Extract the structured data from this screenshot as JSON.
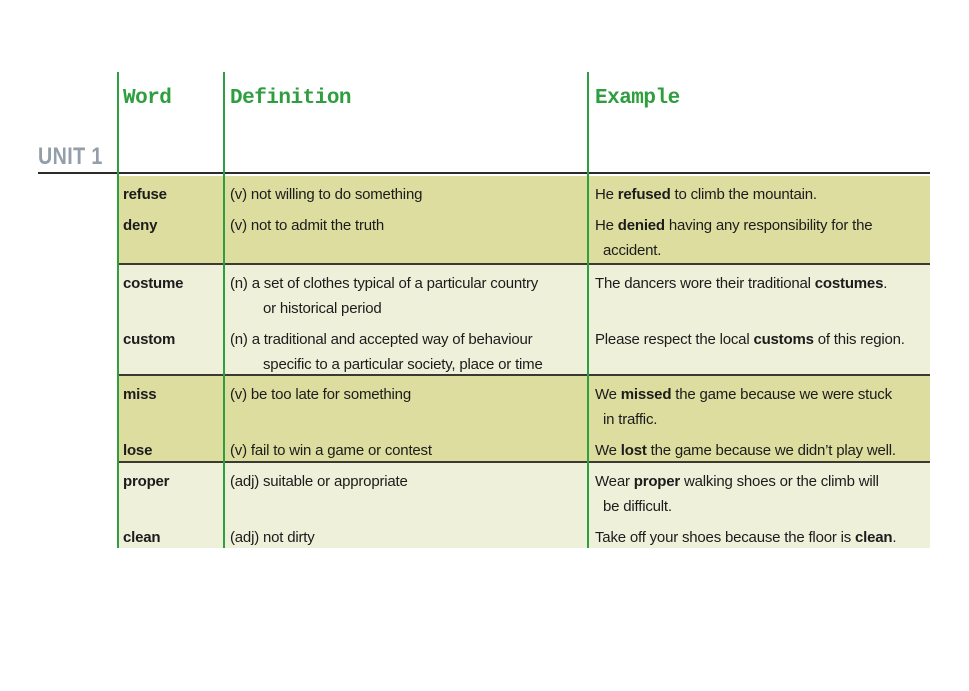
{
  "unit_label": "UNIT 1",
  "colors": {
    "accent_green": "#2f9e3f",
    "row_dark": "#dcdd9f",
    "row_light": "#eff0da",
    "separator": "#3a3a30",
    "rule": "#2b2b28",
    "unit_gray": "#939eaa",
    "text": "#1c1c1c"
  },
  "table": {
    "headers": [
      "Word",
      "Definition",
      "Example"
    ],
    "rows": [
      {
        "shade": "dark",
        "entries": [
          {
            "word": "refuse",
            "definition": [
              {
                "indent": false,
                "text": "(v) not willing to do something"
              }
            ],
            "example": [
              {
                "indent": false,
                "segments": [
                  {
                    "t": "He ",
                    "b": false
                  },
                  {
                    "t": "refused",
                    "b": true
                  },
                  {
                    "t": " to climb the mountain.",
                    "b": false
                  }
                ]
              }
            ]
          },
          {
            "word": "deny",
            "definition": [
              {
                "indent": false,
                "text": "(v) not to admit the truth"
              }
            ],
            "example": [
              {
                "indent": false,
                "segments": [
                  {
                    "t": "He ",
                    "b": false
                  },
                  {
                    "t": "denied",
                    "b": true
                  },
                  {
                    "t": " having any responsibility for the",
                    "b": false
                  }
                ]
              },
              {
                "indent": true,
                "segments": [
                  {
                    "t": "accident.",
                    "b": false
                  }
                ]
              }
            ]
          }
        ]
      },
      {
        "shade": "light",
        "entries": [
          {
            "word": "costume",
            "definition": [
              {
                "indent": false,
                "text": "(n) a set of clothes typical of a particular country"
              },
              {
                "indent": true,
                "text": "or historical period"
              }
            ],
            "example": [
              {
                "indent": false,
                "segments": [
                  {
                    "t": "The dancers wore their traditional ",
                    "b": false
                  },
                  {
                    "t": "costumes",
                    "b": true
                  },
                  {
                    "t": ".",
                    "b": false
                  }
                ]
              }
            ]
          },
          {
            "word": "custom",
            "definition": [
              {
                "indent": false,
                "text": "(n) a traditional and accepted way of behaviour"
              },
              {
                "indent": true,
                "text": "specific to a particular society, place or time"
              }
            ],
            "example": [
              {
                "indent": false,
                "segments": [
                  {
                    "t": "Please respect the local ",
                    "b": false
                  },
                  {
                    "t": "customs",
                    "b": true
                  },
                  {
                    "t": " of this region.",
                    "b": false
                  }
                ]
              }
            ]
          }
        ]
      },
      {
        "shade": "dark",
        "entries": [
          {
            "word": "miss",
            "definition": [
              {
                "indent": false,
                "text": "(v) be too late for something"
              }
            ],
            "example": [
              {
                "indent": false,
                "segments": [
                  {
                    "t": "We ",
                    "b": false
                  },
                  {
                    "t": "missed",
                    "b": true
                  },
                  {
                    "t": " the game because we were stuck",
                    "b": false
                  }
                ]
              },
              {
                "indent": true,
                "segments": [
                  {
                    "t": "in traffic.",
                    "b": false
                  }
                ]
              }
            ]
          },
          {
            "word": "lose",
            "definition": [
              {
                "indent": false,
                "text": "(v) fail to win a game or contest"
              }
            ],
            "example": [
              {
                "indent": false,
                "segments": [
                  {
                    "t": "We ",
                    "b": false
                  },
                  {
                    "t": "lost",
                    "b": true
                  },
                  {
                    "t": " the game because we didn’t play well.",
                    "b": false
                  }
                ]
              }
            ]
          }
        ]
      },
      {
        "shade": "light",
        "entries": [
          {
            "word": "proper",
            "definition": [
              {
                "indent": false,
                "text": "(adj) suitable or appropriate"
              }
            ],
            "example": [
              {
                "indent": false,
                "segments": [
                  {
                    "t": "Wear ",
                    "b": false
                  },
                  {
                    "t": "proper",
                    "b": true
                  },
                  {
                    "t": " walking shoes or the climb will",
                    "b": false
                  }
                ]
              },
              {
                "indent": true,
                "segments": [
                  {
                    "t": "be difficult.",
                    "b": false
                  }
                ]
              }
            ]
          },
          {
            "word": "clean",
            "definition": [
              {
                "indent": false,
                "text": "(adj) not dirty"
              }
            ],
            "example": [
              {
                "indent": false,
                "segments": [
                  {
                    "t": "Take off your shoes because the floor is ",
                    "b": false
                  },
                  {
                    "t": "clean",
                    "b": true
                  },
                  {
                    "t": ".",
                    "b": false
                  }
                ]
              }
            ]
          }
        ]
      }
    ]
  }
}
